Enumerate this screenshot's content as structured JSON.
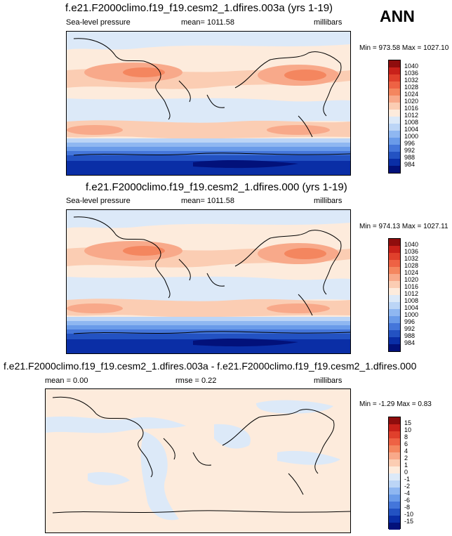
{
  "season": "ANN",
  "panels": [
    {
      "title": "f.e21.F2000climo.f19_f19.cesm2_1.dfires.003a (yrs 1-19)",
      "left_label": "Sea-level pressure",
      "center_label": "mean= 1011.58",
      "right_label": "millibars",
      "minmax": "Min = 973.58 Max = 1027.10",
      "colorbar_levels": [
        "1040",
        "1036",
        "1032",
        "1028",
        "1024",
        "1020",
        "1016",
        "1012",
        "1008",
        "1004",
        "1000",
        "996",
        "992",
        "988",
        "984"
      ],
      "colorbar_colors": [
        "#8f0d0d",
        "#c8211a",
        "#e0402c",
        "#ee6244",
        "#f4865f",
        "#f8a98a",
        "#fbcdb3",
        "#fdebdc",
        "#dce9f8",
        "#bcd5f6",
        "#8fb7f1",
        "#6a9be9",
        "#4476da",
        "#2352c2",
        "#0a2ea6",
        "#02117a"
      ]
    },
    {
      "title": "f.e21.F2000climo.f19_f19.cesm2_1.dfires.000 (yrs 1-19)",
      "left_label": "Sea-level pressure",
      "center_label": "mean= 1011.58",
      "right_label": "millibars",
      "minmax": "Min = 974.13 Max = 1027.11",
      "colorbar_levels": [
        "1040",
        "1036",
        "1032",
        "1028",
        "1024",
        "1020",
        "1016",
        "1012",
        "1008",
        "1004",
        "1000",
        "996",
        "992",
        "988",
        "984"
      ],
      "colorbar_colors": [
        "#8f0d0d",
        "#c8211a",
        "#e0402c",
        "#ee6244",
        "#f4865f",
        "#f8a98a",
        "#fbcdb3",
        "#fdebdc",
        "#dce9f8",
        "#bcd5f6",
        "#8fb7f1",
        "#6a9be9",
        "#4476da",
        "#2352c2",
        "#0a2ea6",
        "#02117a"
      ]
    },
    {
      "title": "f.e21.F2000climo.f19_f19.cesm2_1.dfires.003a - f.e21.F2000climo.f19_f19.cesm2_1.dfires.000",
      "left_label": "mean =  0.00",
      "center_label": "rmse =  0.22",
      "right_label": "millibars",
      "minmax": "Min =  -1.29 Max =  0.83",
      "colorbar_levels": [
        "15",
        "10",
        "8",
        "6",
        "4",
        "2",
        "1",
        "0",
        "-1",
        "-2",
        "-4",
        "-6",
        "-8",
        "-10",
        "-15"
      ],
      "colorbar_colors": [
        "#8f0d0d",
        "#c8211a",
        "#e0402c",
        "#ee6244",
        "#f4865f",
        "#f8a98a",
        "#fbcdb3",
        "#fdebdc",
        "#dce9f8",
        "#bcd5f6",
        "#8fb7f1",
        "#6a9be9",
        "#4476da",
        "#2352c2",
        "#0a2ea6",
        "#02117a"
      ]
    }
  ]
}
